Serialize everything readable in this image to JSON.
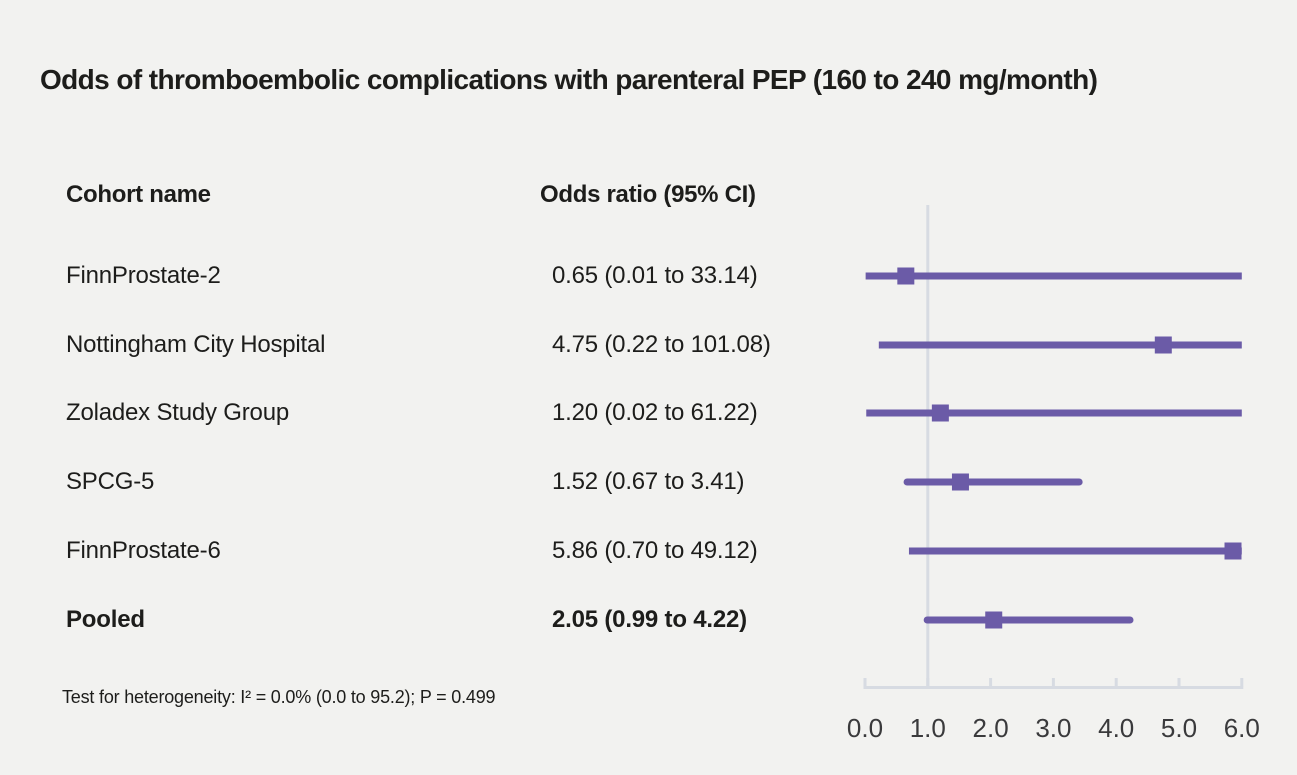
{
  "title": "Odds of thromboembolic complications with parenteral PEP (160 to 240 mg/month)",
  "table": {
    "col_cohort": "Cohort name",
    "col_or": "Odds ratio (95% CI)",
    "rows": [
      {
        "name": "FinnProstate-2",
        "or_label": "0.65 (0.01 to 33.14)"
      },
      {
        "name": "Nottingham City Hospital",
        "or_label": "4.75 (0.22 to 101.08)"
      },
      {
        "name": "Zoladex Study Group",
        "or_label": "1.20 (0.02 to 61.22)"
      },
      {
        "name": "SPCG-5",
        "or_label": "1.52 (0.67 to 3.41)"
      },
      {
        "name": "FinnProstate-6",
        "or_label": "5.86 (0.70 to 49.12)"
      },
      {
        "name": "Pooled",
        "or_label": "2.05 (0.99 to 4.22)"
      }
    ]
  },
  "footnote": "Test for heterogeneity: I² = 0.0% (0.0 to 95.2); P = 0.499",
  "chart_data": {
    "type": "forest",
    "title": "Odds of thromboembolic complications with parenteral PEP (160 to 240 mg/month)",
    "xlim": [
      0,
      6
    ],
    "xticks": [
      {
        "value": 0,
        "label": "0.0"
      },
      {
        "value": 1,
        "label": "1.0"
      },
      {
        "value": 2,
        "label": "2.0"
      },
      {
        "value": 3,
        "label": "3.0"
      },
      {
        "value": 4,
        "label": "4.0"
      },
      {
        "value": 5,
        "label": "5.0"
      },
      {
        "value": 6,
        "label": "6.0"
      }
    ],
    "reference_line": 1.0,
    "series": [
      {
        "name": "FinnProstate-2",
        "odds_ratio": 0.65,
        "ci_low": 0.01,
        "ci_high": 33.14,
        "pooled": false
      },
      {
        "name": "Nottingham City Hospital",
        "odds_ratio": 4.75,
        "ci_low": 0.22,
        "ci_high": 101.08,
        "pooled": false
      },
      {
        "name": "Zoladex Study Group",
        "odds_ratio": 1.2,
        "ci_low": 0.02,
        "ci_high": 61.22,
        "pooled": false
      },
      {
        "name": "SPCG-5",
        "odds_ratio": 1.52,
        "ci_low": 0.67,
        "ci_high": 3.41,
        "pooled": false
      },
      {
        "name": "FinnProstate-6",
        "odds_ratio": 5.86,
        "ci_low": 0.7,
        "ci_high": 49.12,
        "pooled": false
      },
      {
        "name": "Pooled",
        "odds_ratio": 2.05,
        "ci_low": 0.99,
        "ci_high": 4.22,
        "pooled": true
      }
    ],
    "heterogeneity_note": "Test for heterogeneity: I² = 0.0% (0.0 to 95.2); P = 0.499",
    "colors": {
      "marker": "#6b5ba7",
      "ci_line": "#6b5ba7",
      "axis": "#d7dbe2",
      "tick_text": "#3a3a3c",
      "text": "#1d1d1b",
      "background": "#f2f2f0"
    },
    "legend": null,
    "grid": false
  }
}
